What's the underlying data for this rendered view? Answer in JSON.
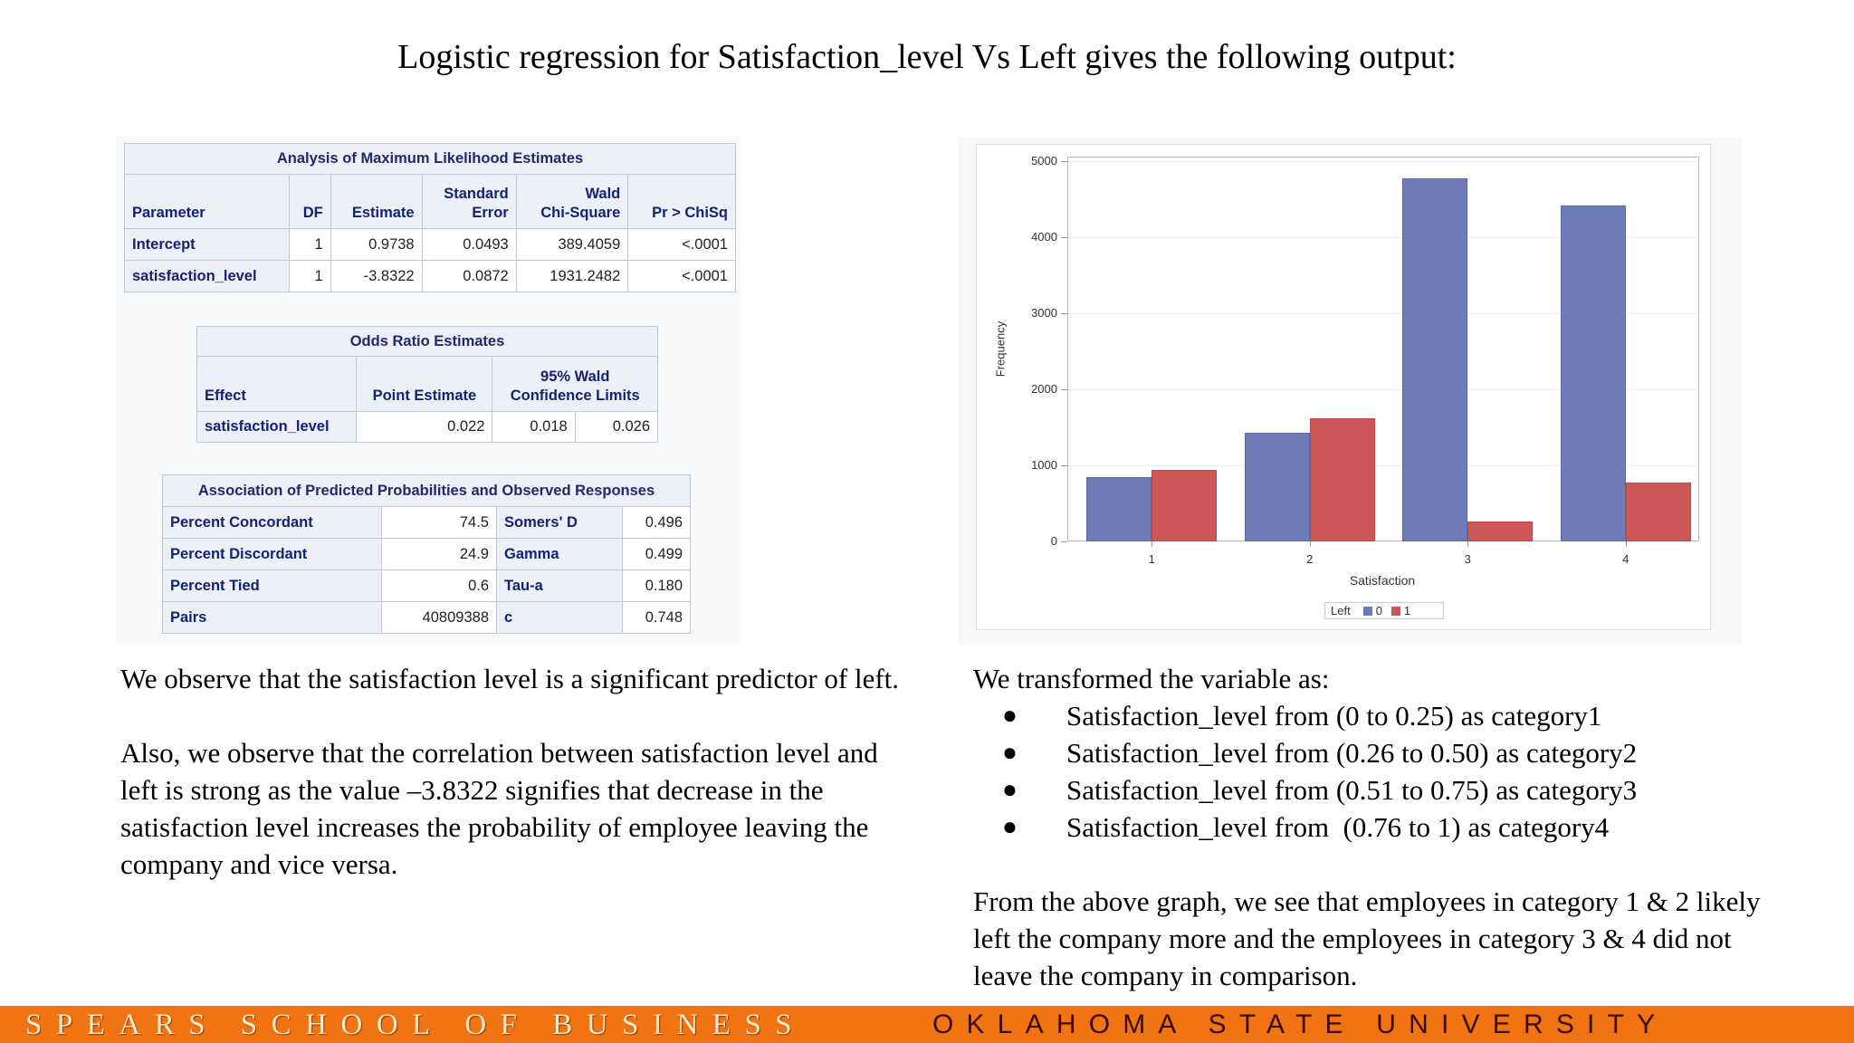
{
  "title": "Logistic regression for Satisfaction_level Vs Left gives the following output:",
  "tables": {
    "mle": {
      "title": "Analysis of Maximum Likelihood Estimates",
      "headers": [
        "Parameter",
        "DF",
        "Estimate",
        "Standard Error",
        "Wald Chi-Square",
        "Pr > ChiSq"
      ],
      "header_lines": {
        "standard_error": [
          "Standard",
          "Error"
        ],
        "wald": [
          "Wald",
          "Chi-Square"
        ]
      },
      "rows": [
        [
          "Intercept",
          "1",
          "0.9738",
          "0.0493",
          "389.4059",
          "<.0001"
        ],
        [
          "satisfaction_level",
          "1",
          "-3.8322",
          "0.0872",
          "1931.2482",
          "<.0001"
        ]
      ]
    },
    "odds": {
      "title": "Odds Ratio Estimates",
      "headers": [
        "Effect",
        "Point Estimate",
        "95% Wald Confidence Limits"
      ],
      "header_lines": {
        "ci": [
          "95% Wald",
          "Confidence Limits"
        ]
      },
      "rows": [
        [
          "satisfaction_level",
          "0.022",
          "0.018",
          "0.026"
        ]
      ]
    },
    "assoc": {
      "title": "Association of Predicted Probabilities and Observed Responses",
      "rows": [
        [
          "Percent Concordant",
          "74.5",
          "Somers' D",
          "0.496"
        ],
        [
          "Percent Discordant",
          "24.9",
          "Gamma",
          "0.499"
        ],
        [
          "Percent Tied",
          "0.6",
          "Tau-a",
          "0.180"
        ],
        [
          "Pairs",
          "40809388",
          "c",
          "0.748"
        ]
      ]
    }
  },
  "chart": {
    "ylabel": "Frequency",
    "xlabel": "Satisfaction",
    "yticks": [
      "0",
      "1000",
      "2000",
      "3000",
      "4000",
      "5000"
    ],
    "xticks": [
      "1",
      "2",
      "3",
      "4"
    ],
    "legend": {
      "title": "Left",
      "items": [
        "0",
        "1"
      ]
    },
    "colors": {
      "series0": "#6e7bb6",
      "series1": "#cd5757"
    }
  },
  "chart_data": {
    "type": "bar",
    "title": "",
    "categories": [
      "1",
      "2",
      "3",
      "4"
    ],
    "series": [
      {
        "name": "0",
        "values": [
          845,
          1430,
          4775,
          4415
        ]
      },
      {
        "name": "1",
        "values": [
          940,
          1625,
          260,
          775
        ]
      }
    ],
    "xlabel": "Satisfaction",
    "ylabel": "Frequency",
    "ylim": [
      0,
      5000
    ],
    "yticks": [
      0,
      1000,
      2000,
      3000,
      4000,
      5000
    ],
    "grid": true,
    "legend": {
      "title": "Left",
      "position": "bottom"
    }
  },
  "left_text": {
    "p1": "We observe that the satisfaction level is a significant predictor of left.",
    "p2": "Also, we observe that the correlation between satisfaction level and left is strong as the value –3.8322 signifies that decrease in the satisfaction level increases the probability of employee leaving the company and vice versa."
  },
  "right_text": {
    "intro": "We transformed the variable as:",
    "bullets": [
      "Satisfaction_level from (0 to 0.25) as category1",
      "Satisfaction_level from (0.26 to 0.50) as category2",
      "Satisfaction_level from (0.51 to 0.75) as category3",
      "Satisfaction_level from  (0.76 to 1) as category4"
    ],
    "bullet_char": "●",
    "conclusion": "From the above graph, we see that employees in category 1 & 2 likely left the company more and the employees in category 3 & 4 did not leave the company in comparison."
  },
  "footer": {
    "left": "SPEARS SCHOOL OF BUSINESS",
    "right": "OKLAHOMA STATE UNIVERSITY",
    "color": "#f27312"
  }
}
